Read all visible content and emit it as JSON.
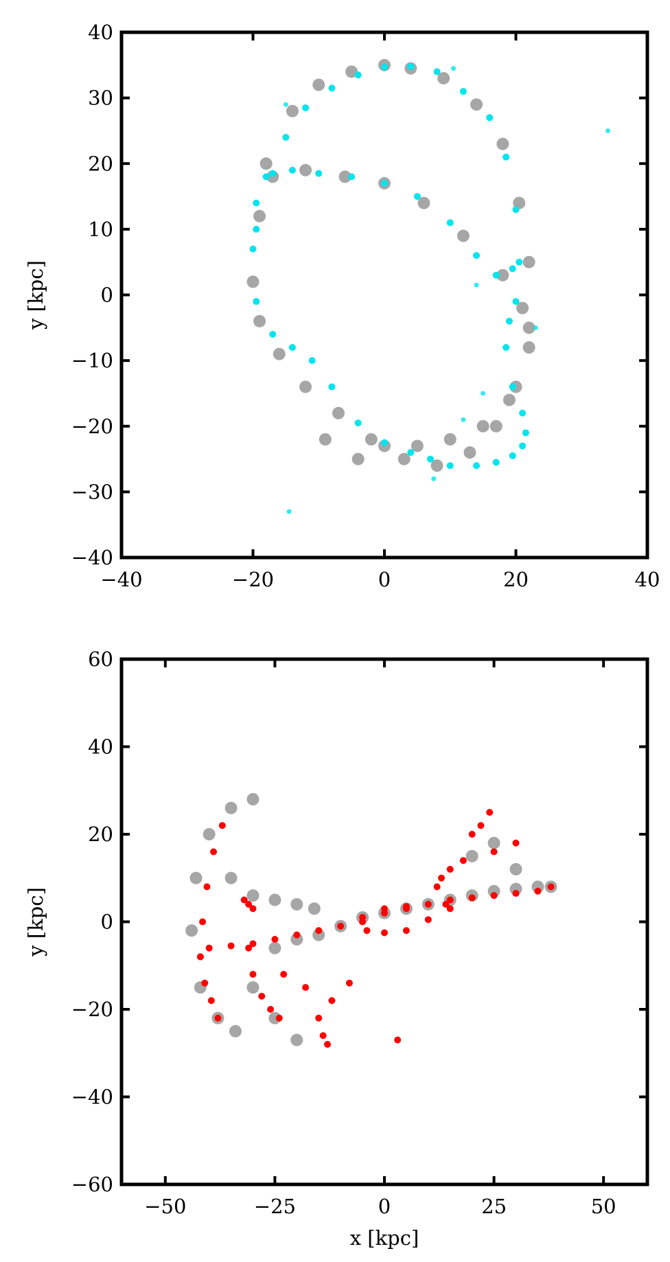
{
  "chart_data": [
    {
      "type": "scatter",
      "xlabel": "",
      "ylabel": "y [kpc]",
      "xlim": [
        -40,
        40
      ],
      "ylim": [
        -40,
        40
      ],
      "xticks": [
        -40,
        -20,
        0,
        20,
        40
      ],
      "yticks": [
        -40,
        -30,
        -20,
        -10,
        0,
        10,
        20,
        30,
        40
      ],
      "xtick_labels": [
        "−40",
        "−20",
        "0",
        "20",
        "40"
      ],
      "ytick_labels": [
        "−40",
        "−30",
        "−20",
        "−10",
        "0",
        "10",
        "20",
        "30",
        "40"
      ],
      "grid": false,
      "series": [
        {
          "color": "#000000",
          "marker": "dots",
          "x": [
            -18,
            -14,
            -10,
            -5,
            0,
            4,
            9,
            14,
            18,
            20.5,
            22,
            22,
            20,
            17,
            13,
            8,
            3,
            -2,
            -7,
            -12,
            -16,
            -19,
            -20,
            -19,
            -17,
            -12,
            -6,
            0,
            6,
            12,
            18,
            21,
            22,
            19,
            15,
            10,
            5,
            0,
            -4,
            -9
          ],
          "y": [
            20,
            28,
            32,
            34,
            35,
            34.5,
            33,
            29,
            23,
            14,
            5,
            -5,
            -14,
            -20,
            -24,
            -26,
            -25,
            -22,
            -18,
            -14,
            -9,
            -4,
            2,
            12,
            18,
            19,
            18,
            17,
            14,
            9,
            3,
            -2,
            -8,
            -16,
            -20,
            -22,
            -23,
            -23,
            -25,
            -22
          ]
        },
        {
          "color": "#00e5ee",
          "marker": "dots",
          "x": [
            -19.5,
            -18,
            -15,
            -12,
            -8,
            -4,
            0,
            4,
            8,
            12,
            16,
            18.5,
            20,
            20.5,
            20,
            19,
            18.5,
            19.5,
            21,
            21.5,
            21,
            19.5,
            17,
            14,
            10,
            7,
            4,
            0,
            -4,
            -8,
            -11,
            -14,
            -17,
            -19.5,
            -20,
            -19.5,
            -17,
            -14,
            -10,
            -5,
            0,
            5,
            10,
            14,
            17,
            19.5
          ],
          "y": [
            10,
            18,
            24,
            28.5,
            31.5,
            33.5,
            34.7,
            34.8,
            34,
            31,
            27,
            21,
            13,
            5,
            -1,
            -4,
            -8,
            -14,
            -18,
            -21,
            -23,
            -24.5,
            -25.5,
            -26,
            -26,
            -25,
            -24,
            -22.5,
            -19.5,
            -14,
            -10,
            -8,
            -6,
            -1,
            7,
            14,
            18.5,
            19,
            18.5,
            18,
            17,
            15,
            11,
            6,
            3,
            4
          ],
          "extra_x": [
            10.5,
            34,
            -14.5,
            -15,
            7.5,
            15,
            23,
            12,
            14
          ],
          "extra_y": [
            34.5,
            25,
            -33,
            29,
            -28,
            -15,
            -5,
            -19,
            1.5
          ]
        }
      ]
    },
    {
      "type": "scatter",
      "xlabel": "x [kpc]",
      "ylabel": "y [kpc]",
      "xlim": [
        -60,
        60
      ],
      "ylim": [
        -60,
        60
      ],
      "xticks": [
        -50,
        -25,
        0,
        25,
        50
      ],
      "yticks": [
        -60,
        -40,
        -20,
        0,
        20,
        40,
        60
      ],
      "xtick_labels": [
        "−50",
        "−25",
        "0",
        "25",
        "50"
      ],
      "ytick_labels": [
        "−60",
        "−40",
        "−20",
        "0",
        "20",
        "40",
        "60"
      ],
      "grid": false,
      "series": [
        {
          "color": "#000000",
          "marker": "dots",
          "x": [
            -44,
            -43,
            -40,
            -35,
            -30,
            -25,
            -20,
            -15,
            -10,
            -5,
            0,
            5,
            10,
            15,
            20,
            25,
            30,
            35,
            38,
            -42,
            -38,
            -34,
            -30,
            -25,
            -20,
            -35,
            -30,
            -25,
            -20,
            -16,
            20,
            25,
            30
          ],
          "y": [
            -2,
            10,
            20,
            26,
            28,
            -6,
            -4,
            -3,
            -1,
            1,
            2,
            3,
            4,
            5,
            6,
            7,
            7.5,
            8,
            8,
            -15,
            -22,
            -25,
            -15,
            -22,
            -27,
            10,
            6,
            5,
            4,
            3,
            15,
            18,
            12
          ]
        },
        {
          "color": "#ff0000",
          "marker": "dots",
          "x": [
            -42,
            -41.5,
            -40.5,
            -39,
            -37,
            -42,
            -41,
            -39.5,
            -38,
            -40,
            -35,
            -30,
            -25,
            -20,
            -15,
            -10,
            -5,
            0,
            5,
            10,
            15,
            20,
            25,
            30,
            35,
            38,
            -31,
            -30,
            -28,
            -26,
            -24,
            -5,
            0,
            5,
            10,
            14,
            -4,
            0,
            5,
            10,
            15,
            12,
            13,
            15,
            18,
            25,
            30,
            20,
            22,
            24,
            -32,
            -31,
            -30,
            -23,
            -18,
            -15,
            -14,
            -13,
            3,
            -8,
            -12
          ],
          "y": [
            -8,
            0,
            8,
            16,
            22,
            -8,
            -14,
            -18,
            -22,
            -6,
            -5.5,
            -5,
            -4,
            -3,
            -2,
            -1,
            1,
            2,
            3,
            4,
            5,
            5.5,
            6,
            6.5,
            7,
            8,
            -6,
            -12,
            -17,
            -20,
            -22,
            0,
            3,
            3.5,
            4,
            4,
            -2,
            -2.5,
            -2,
            0.5,
            3,
            8,
            10,
            12,
            14,
            16,
            18,
            20,
            22,
            25,
            5,
            4,
            3,
            -12,
            -15,
            -22,
            -26,
            -28,
            -27,
            -14,
            -18
          ]
        }
      ]
    }
  ]
}
